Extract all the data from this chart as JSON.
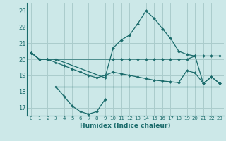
{
  "xlabel": "Humidex (Indice chaleur)",
  "background_color": "#cce8e8",
  "grid_color": "#aacccc",
  "line_color": "#1a6b6b",
  "xlim": [
    -0.5,
    23.5
  ],
  "ylim": [
    16.5,
    23.5
  ],
  "yticks": [
    17,
    18,
    19,
    20,
    21,
    22,
    23
  ],
  "xticks": [
    0,
    1,
    2,
    3,
    4,
    5,
    6,
    7,
    8,
    9,
    10,
    11,
    12,
    13,
    14,
    15,
    16,
    17,
    18,
    19,
    20,
    21,
    22,
    23
  ],
  "line1_x": [
    0,
    1,
    2,
    3,
    10,
    11,
    12,
    13,
    14,
    15,
    16,
    17,
    18,
    19,
    20,
    21,
    22,
    23
  ],
  "line1_y": [
    20.4,
    20.0,
    20.0,
    20.0,
    20.0,
    20.0,
    20.0,
    20.0,
    20.0,
    20.0,
    20.0,
    20.0,
    20.0,
    20.0,
    20.2,
    20.2,
    20.2,
    20.2
  ],
  "line2_x": [
    0,
    1,
    2,
    3,
    4,
    5,
    6,
    7,
    8,
    9,
    10,
    11,
    12,
    13,
    14,
    15,
    16,
    17,
    18,
    19,
    20,
    21,
    22,
    23
  ],
  "line2_y": [
    20.4,
    20.0,
    20.0,
    19.8,
    19.6,
    19.4,
    19.2,
    19.0,
    18.85,
    19.0,
    19.2,
    19.1,
    19.0,
    18.9,
    18.8,
    18.7,
    18.65,
    18.6,
    18.55,
    19.3,
    19.15,
    18.5,
    18.9,
    18.5
  ],
  "line3_x": [
    0,
    1,
    2,
    3,
    9,
    10,
    11,
    12,
    13,
    14,
    15,
    16,
    17,
    18,
    19,
    20,
    21,
    22,
    23
  ],
  "line3_y": [
    20.4,
    20.0,
    20.0,
    20.0,
    18.85,
    20.7,
    21.2,
    21.5,
    22.2,
    23.0,
    22.55,
    21.9,
    21.3,
    20.5,
    20.3,
    20.2,
    18.5,
    18.9,
    18.5
  ],
  "line4_x": [
    3,
    4,
    5,
    6,
    7,
    8,
    9
  ],
  "line4_y": [
    18.3,
    17.7,
    17.1,
    16.75,
    16.6,
    16.75,
    17.5
  ],
  "line5_x": [
    3,
    23
  ],
  "line5_y": [
    18.3,
    18.3
  ]
}
